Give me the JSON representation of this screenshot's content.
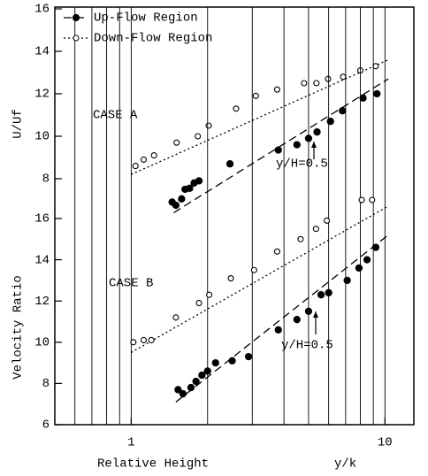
{
  "chart_data": [
    {
      "type": "scatter",
      "annotation": "CASE A",
      "note": "y/H=0.5",
      "ylabel": "U/Uf",
      "xlim": [
        0.5,
        13
      ],
      "ylim": [
        6,
        16
      ],
      "yticks": [
        8,
        10,
        12,
        14,
        16
      ],
      "log_x": true,
      "legend": "upper left",
      "series": [
        {
          "name": "Up-Flow Region",
          "color": "#000000",
          "marker": "filled",
          "line": "dash",
          "x": [
            1.45,
            1.5,
            1.58,
            1.63,
            1.7,
            1.77,
            1.85,
            2.45,
            3.8,
            4.5,
            5.0,
            5.4,
            6.1,
            6.8,
            8.2,
            9.3
          ],
          "values": [
            6.9,
            6.75,
            7.05,
            7.5,
            7.55,
            7.8,
            7.9,
            8.7,
            9.35,
            9.6,
            9.9,
            10.2,
            10.7,
            11.2,
            11.8,
            12.0
          ],
          "fit_x": [
            1.47,
            10.3
          ],
          "fit_y": [
            6.4,
            12.7
          ]
        },
        {
          "name": "Down-Flow Region",
          "color": "#000000",
          "marker": "open",
          "line": "dot",
          "x": [
            1.04,
            1.12,
            1.23,
            1.51,
            1.83,
            2.02,
            2.59,
            3.1,
            3.76,
            4.8,
            5.37,
            5.97,
            6.84,
            8.0,
            9.2
          ],
          "values": [
            8.6,
            8.9,
            9.1,
            9.7,
            10.0,
            10.5,
            11.3,
            11.9,
            12.2,
            12.5,
            12.5,
            12.7,
            12.8,
            13.1,
            13.3
          ],
          "fit_x": [
            1.0,
            10.3
          ],
          "fit_y": [
            8.2,
            13.6
          ]
        }
      ]
    },
    {
      "type": "scatter",
      "annotation": "CASE B",
      "note": "y/H=0.5",
      "ylabel": "Velocity Ratio",
      "xlabel": "Relative Height",
      "xunit": "y/k",
      "xlim": [
        0.5,
        13
      ],
      "ylim": [
        6,
        16
      ],
      "yticks": [
        6,
        8,
        10,
        12,
        14,
        16
      ],
      "log_x": true,
      "xticks": [
        1,
        10
      ],
      "xgrid": [
        0.6,
        0.7,
        0.8,
        0.9,
        1,
        2,
        3,
        4,
        5,
        6,
        7,
        8,
        9,
        10
      ],
      "series": [
        {
          "color": "#000000",
          "marker": "filled",
          "line": "dash",
          "x": [
            1.53,
            1.6,
            1.72,
            1.8,
            1.9,
            2.0,
            2.15,
            2.5,
            2.9,
            3.8,
            4.5,
            5.0,
            5.6,
            6.0,
            7.1,
            7.9,
            8.5,
            9.2
          ],
          "values": [
            7.7,
            7.5,
            7.8,
            8.1,
            8.4,
            8.6,
            9.0,
            9.1,
            9.3,
            10.6,
            11.1,
            11.5,
            12.3,
            12.4,
            13.0,
            13.6,
            14.0,
            14.6
          ],
          "fit_x": [
            1.5,
            10.3
          ],
          "fit_y": [
            7.1,
            15.2
          ]
        },
        {
          "color": "#000000",
          "marker": "open",
          "line": "dot",
          "x": [
            1.02,
            1.12,
            1.2,
            1.5,
            1.85,
            2.03,
            2.47,
            3.05,
            3.76,
            4.65,
            5.35,
            5.9,
            8.1,
            8.9
          ],
          "values": [
            10.0,
            10.1,
            10.1,
            11.2,
            11.9,
            12.3,
            13.1,
            13.5,
            14.4,
            15.0,
            15.5,
            15.9,
            16.9,
            16.9
          ],
          "fit_x": [
            1.0,
            10.3
          ],
          "fit_y": [
            9.5,
            16.6
          ]
        }
      ]
    }
  ]
}
